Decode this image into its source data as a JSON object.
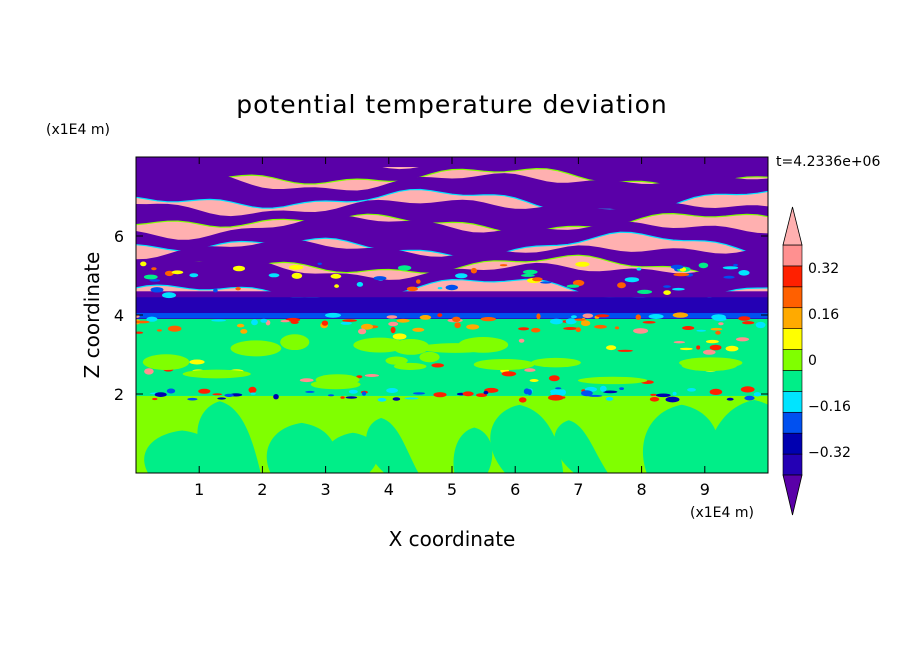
{
  "chart_data": {
    "type": "heatmap",
    "title": "potential temperature deviation",
    "xlabel": "X coordinate",
    "ylabel": "Z coordinate",
    "x_unit": "(x1E4 m)",
    "y_unit": "(x1E4 m)",
    "time_label": "t=4.2336e+06",
    "xlim": [
      0,
      10
    ],
    "ylim": [
      0,
      8
    ],
    "x_ticks": [
      "1",
      "2",
      "3",
      "4",
      "5",
      "6",
      "7",
      "8",
      "9"
    ],
    "y_ticks": [
      "2",
      "4",
      "6"
    ],
    "x_tick_values": [
      1,
      2,
      3,
      4,
      5,
      6,
      7,
      8,
      9
    ],
    "y_tick_values": [
      2,
      4,
      6
    ],
    "colorbar": {
      "levels": [
        -0.48,
        -0.4,
        -0.32,
        -0.24,
        -0.16,
        -0.08,
        0,
        0.08,
        0.16,
        0.24,
        0.32,
        0.4,
        0.48
      ],
      "tick_labels": [
        "0.32",
        "0.16",
        "0",
        "−0.16",
        "−0.32"
      ],
      "tick_values": [
        0.32,
        0.16,
        0,
        -0.16,
        -0.32
      ],
      "colors": [
        "#5a00a8",
        "#2400b4",
        "#0000b0",
        "#0050f0",
        "#00e4ff",
        "#00ee88",
        "#80ff00",
        "#ffff00",
        "#ffaa00",
        "#ff6000",
        "#ff2000",
        "#ff9090",
        "#ffb0b0"
      ],
      "over_color": "#ffb0b0",
      "under_color": "#5a00a8"
    },
    "bands": [
      {
        "z_range": [
          0,
          1.95
        ],
        "description_color": "#80ff00"
      },
      {
        "z_range": [
          1.95,
          3.9
        ],
        "description_color": "#00ee88"
      },
      {
        "z_range": [
          3.9,
          4.5
        ],
        "description_color": "#2400b4"
      },
      {
        "z_range": [
          4.5,
          8
        ],
        "description_color": "#ffb0b0"
      }
    ]
  }
}
